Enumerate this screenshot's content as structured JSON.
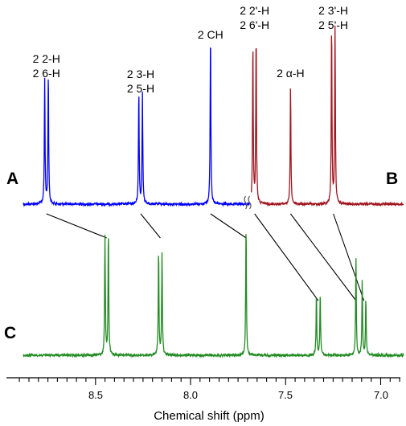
{
  "chart_data": {
    "type": "line",
    "xlabel": "Chemical shift (ppm)",
    "ylabel": "",
    "xlim": [
      8.88,
      6.88
    ],
    "x_reversed": true,
    "x_ticks": [
      8.5,
      8.0,
      7.5,
      7.0
    ],
    "x_tick_labels": [
      "8.5",
      "8.0",
      "7.5",
      "7.0"
    ],
    "grid": false,
    "panels": [
      {
        "label": "A",
        "color": "#0000ff",
        "x_range": [
          8.88,
          7.69
        ],
        "peaks": [
          {
            "x": 8.767,
            "h": 0.62
          },
          {
            "x": 8.748,
            "h": 0.65
          },
          {
            "x": 8.272,
            "h": 0.56
          },
          {
            "x": 8.253,
            "h": 0.56
          },
          {
            "x": 7.895,
            "h": 0.86
          }
        ]
      },
      {
        "label": "B",
        "color": "#a0141e",
        "x_range": [
          7.68,
          6.88
        ],
        "peaks": [
          {
            "x": 7.672,
            "h": 0.8
          },
          {
            "x": 7.655,
            "h": 0.84
          },
          {
            "x": 7.474,
            "h": 0.59
          },
          {
            "x": 7.258,
            "h": 0.88
          },
          {
            "x": 7.24,
            "h": 0.87
          }
        ]
      },
      {
        "label": "C",
        "color": "#228b22",
        "x_range": [
          8.88,
          6.88
        ],
        "peaks": [
          {
            "x": 8.45,
            "h": 0.59
          },
          {
            "x": 8.432,
            "h": 0.61
          },
          {
            "x": 8.168,
            "h": 0.52
          },
          {
            "x": 8.15,
            "h": 0.51
          },
          {
            "x": 7.708,
            "h": 0.65
          },
          {
            "x": 7.338,
            "h": 0.3
          },
          {
            "x": 7.318,
            "h": 0.31
          },
          {
            "x": 7.13,
            "h": 0.48
          },
          {
            "x": 7.097,
            "h": 0.37
          },
          {
            "x": 7.078,
            "h": 0.28
          }
        ]
      }
    ],
    "annotations": [
      {
        "lines": [
          "2 2-H",
          "2 6-H"
        ],
        "x": 8.758
      },
      {
        "lines": [
          "2 3-H",
          "2 5-H"
        ],
        "x": 8.262
      },
      {
        "lines": [
          "2 CH"
        ],
        "x": 7.895
      },
      {
        "lines": [
          "2 2'-H",
          "2 6'-H"
        ],
        "x": 7.663
      },
      {
        "lines": [
          "2 α-H"
        ],
        "x": 7.474
      },
      {
        "lines": [
          "2 3'-H",
          "2 5'-H"
        ],
        "x": 7.249
      }
    ],
    "correlations": [
      {
        "from": 8.758,
        "to": 8.441
      },
      {
        "from": 8.262,
        "to": 8.159
      },
      {
        "from": 7.895,
        "to": 7.708
      },
      {
        "from": 7.663,
        "to": 7.328
      },
      {
        "from": 7.474,
        "to": 7.13
      },
      {
        "from": 7.249,
        "to": 7.088
      }
    ]
  }
}
